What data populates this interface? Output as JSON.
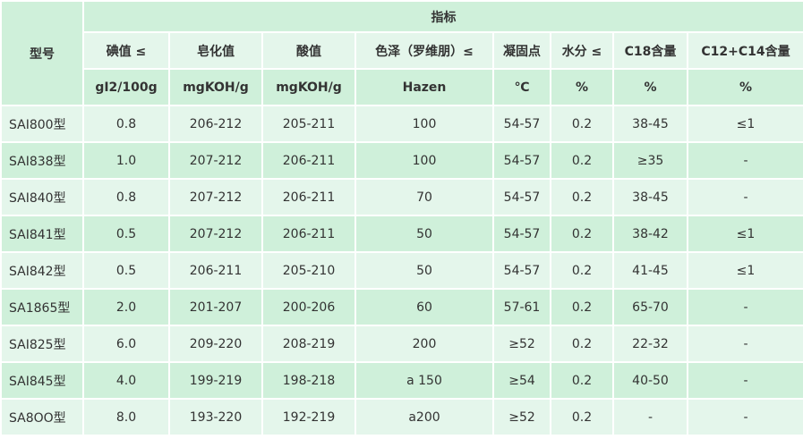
{
  "header": {
    "model": "型号",
    "group": "指标",
    "columns": [
      "碘值 ≤",
      "皂化值",
      "酸值",
      "色泽（罗维朋）≤",
      "凝固点",
      "水分 ≤",
      "C18含量",
      "C12+C14含量"
    ],
    "units": [
      "gI2/100g",
      "mgKOH/g",
      "mgKOH/g",
      "Hazen",
      "℃",
      "%",
      "%",
      "%"
    ]
  },
  "rows": [
    [
      "SAI800型",
      "0.8",
      "206-212",
      "205-211",
      "100",
      "54-57",
      "0.2",
      "38-45",
      "≤1"
    ],
    [
      "SAI838型",
      "1.0",
      "207-212",
      "206-211",
      "100",
      "54-57",
      "0.2",
      "≥35",
      "-"
    ],
    [
      "SAI840型",
      "0.8",
      "207-212",
      "206-211",
      "70",
      "54-57",
      "0.2",
      "38-45",
      "-"
    ],
    [
      "SAI841型",
      "0.5",
      "207-212",
      "206-211",
      "50",
      "54-57",
      "0.2",
      "38-42",
      "≤1"
    ],
    [
      "SAI842型",
      "0.5",
      "206-211",
      "205-210",
      "50",
      "54-57",
      "0.2",
      "41-45",
      "≤1"
    ],
    [
      "SA1865型",
      "2.0",
      "201-207",
      "200-206",
      "60",
      "57-61",
      "0.2",
      "65-70",
      "-"
    ],
    [
      "SAI825型",
      "6.0",
      "209-220",
      "208-219",
      "200",
      "≥52",
      "0.2",
      "22-32",
      "-"
    ],
    [
      "SAI845型",
      "4.0",
      "199-219",
      "198-218",
      "a 150",
      "≥54",
      "0.2",
      "40-50",
      "-"
    ],
    [
      "SA8OO型",
      "8.0",
      "193-220",
      "192-219",
      "a200",
      "≥52",
      "0.2",
      "-",
      "-"
    ]
  ],
  "colors": {
    "band_dark": "#cff0da",
    "band_light": "#e4f6eb",
    "grid": "#ffffff"
  }
}
